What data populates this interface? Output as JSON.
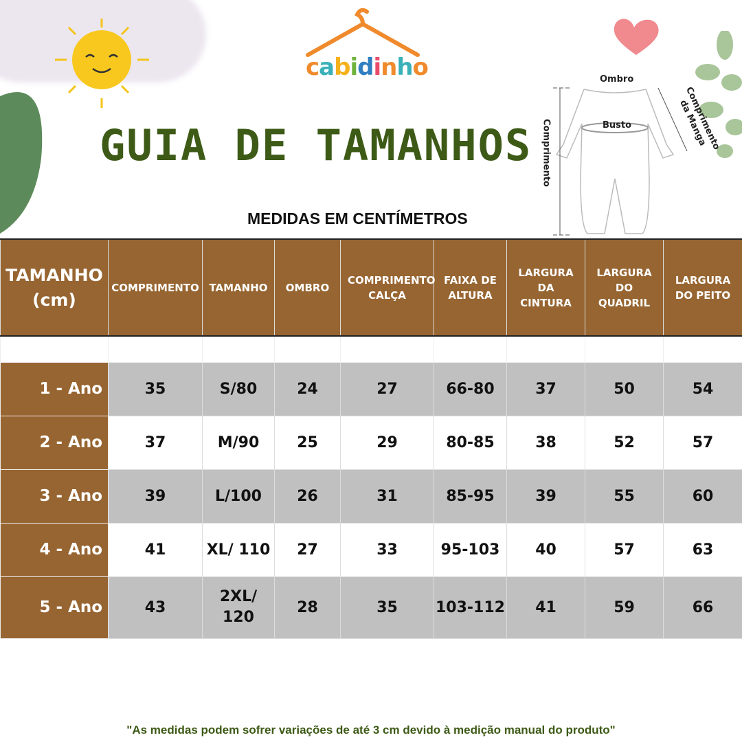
{
  "brand": {
    "name": "cabidinho",
    "letters": [
      "c",
      "a",
      "b",
      "i",
      "d",
      "i",
      "n",
      "h",
      "o"
    ],
    "letter_colors": [
      "#f08a2c",
      "#3ab0b8",
      "#f5b21b",
      "#6fb33d",
      "#2f7fc1",
      "#e84c6a",
      "#f08a2c",
      "#3ab0b8",
      "#f08a2c"
    ]
  },
  "title": "GUIA DE TAMANHOS",
  "subtitle": "MEDIDAS EM CENTÍMETROS",
  "diagram": {
    "ombro": "Ombro",
    "busto": "Busto",
    "comprimento": "Comprimento",
    "manga": "Comprimento da Manga"
  },
  "colors": {
    "header_bg": "#976531",
    "row_gray": "#c0c0c0",
    "title": "#3d5a16"
  },
  "table": {
    "first_header": [
      "TAMANHO",
      "(cm)"
    ],
    "headers": [
      "COMPRIMENTO",
      "TAMANHO",
      "OMBRO",
      "COMPRIMENTO CALÇA",
      "FAIXA DE ALTURA",
      "LARGURA DA CINTURA",
      "LARGURA DO QUADRIL",
      "LARGURA DO PEITO"
    ],
    "rows": [
      {
        "label": "1 - Ano",
        "values": [
          "35",
          "S/80",
          "24",
          "27",
          "66-80",
          "37",
          "50",
          "54"
        ]
      },
      {
        "label": "2 - Ano",
        "values": [
          "37",
          "M/90",
          "25",
          "29",
          "80-85",
          "38",
          "52",
          "57"
        ]
      },
      {
        "label": "3 - Ano",
        "values": [
          "39",
          "L/100",
          "26",
          "31",
          "85-95",
          "39",
          "55",
          "60"
        ]
      },
      {
        "label": "4 - Ano",
        "values": [
          "41",
          "XL/ 110",
          "27",
          "33",
          "95-103",
          "40",
          "57",
          "63"
        ]
      },
      {
        "label": "5 - Ano",
        "values": [
          "43",
          "2XL/ 120",
          "28",
          "35",
          "103-112",
          "41",
          "59",
          "66"
        ]
      }
    ]
  },
  "note": "\"As medidas podem sofrer variações de até 3 cm devido à medição manual do produto\""
}
